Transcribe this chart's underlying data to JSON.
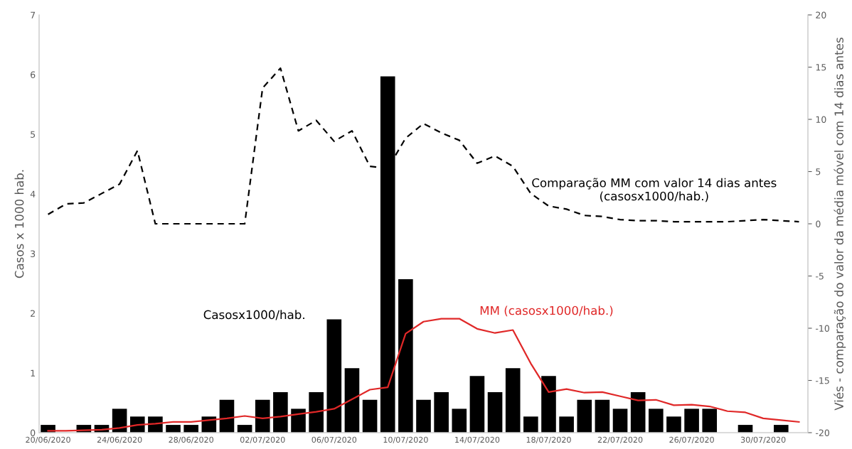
{
  "chart_data": {
    "type": "bar",
    "ylabel": "Casos x 1000 hab.",
    "y2label": "Viés - comparação do valor da média móvel com 14 dias antes",
    "categories": [
      "20/06/2020",
      null,
      null,
      null,
      "24/06/2020",
      null,
      null,
      null,
      "28/06/2020",
      null,
      null,
      null,
      "02/07/2020",
      null,
      null,
      null,
      "06/07/2020",
      null,
      null,
      null,
      "10/07/2020",
      null,
      null,
      null,
      "14/07/2020",
      null,
      null,
      null,
      "18/07/2020",
      null,
      null,
      null,
      "22/07/2020",
      null,
      null,
      null,
      "26/07/2020",
      null,
      null,
      null,
      "30/07/2020",
      null,
      null
    ],
    "series": [
      {
        "name": "Casosx1000/hab.",
        "color": "#000000",
        "values": [
          0.13,
          0,
          0.13,
          0.13,
          0.4,
          0.27,
          0.27,
          0.13,
          0.13,
          0.27,
          0.55,
          0.13,
          0.55,
          0.68,
          0.4,
          0.68,
          1.9,
          1.08,
          0.55,
          5.97,
          2.57,
          0.55,
          0.68,
          0.4,
          0.95,
          0.68,
          1.08,
          0.27,
          0.95,
          0.27,
          0.55,
          0.55,
          0.4,
          0.68,
          0.4,
          0.27,
          0.4,
          0.4,
          0,
          0.13,
          0,
          0.13,
          0
        ]
      },
      {
        "name": "MM (casosx1000/hab.)",
        "type": "line",
        "line_style": "solid",
        "color": "#e02828",
        "values": [
          0.03,
          0.03,
          0.04,
          0.05,
          0.08,
          0.13,
          0.15,
          0.18,
          0.18,
          0.21,
          0.24,
          0.28,
          0.24,
          0.27,
          0.31,
          0.35,
          0.4,
          0.56,
          0.72,
          0.76,
          1.66,
          1.86,
          1.91,
          1.91,
          1.74,
          1.67,
          1.72,
          1.16,
          0.68,
          0.73,
          0.67,
          0.68,
          0.61,
          0.54,
          0.55,
          0.46,
          0.47,
          0.44,
          0.36,
          0.34,
          0.24,
          0.21,
          0.18
        ]
      },
      {
        "name": "Comparação MM com valor 14 dias antes\n(casosx1000/hab.)",
        "type": "line",
        "axis": "y2",
        "line_style": "dashed",
        "color": "#000000",
        "values": [
          0.9,
          1.9,
          2,
          2.9,
          3.8,
          7,
          0,
          0,
          0,
          0,
          0,
          0,
          13,
          14.9,
          8.9,
          9.9,
          7.9,
          8.9,
          5.5,
          5.3,
          8.2,
          9.6,
          8.7,
          8,
          5.8,
          6.5,
          5.5,
          2.9,
          1.7,
          1.4,
          0.8,
          0.7,
          0.4,
          0.3,
          0.3,
          0.2,
          0.2,
          0.2,
          0.2,
          0.3,
          0.4,
          0.3,
          0.2
        ]
      }
    ],
    "ylim": [
      0,
      7
    ],
    "yticks": [
      0,
      1,
      2,
      3,
      4,
      5,
      6,
      7
    ],
    "y2lim": [
      -20,
      20
    ],
    "y2ticks": [
      -20,
      -15,
      -10,
      -5,
      0,
      5,
      10,
      15,
      20
    ],
    "legend": false,
    "grid": false
  }
}
